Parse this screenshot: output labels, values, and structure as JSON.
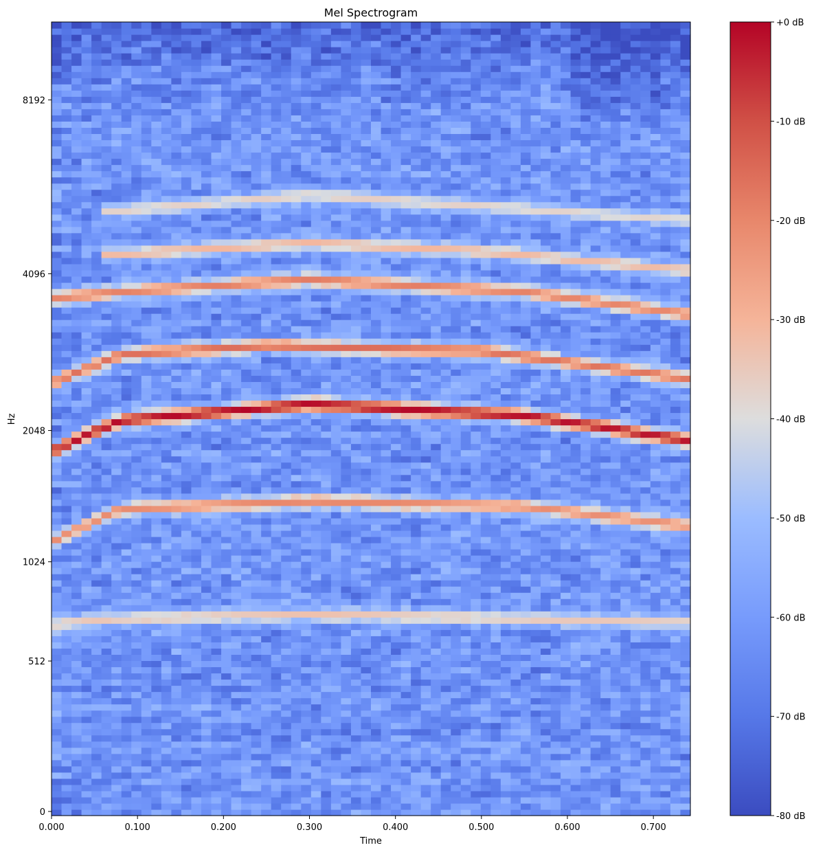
{
  "chart_data": {
    "type": "heatmap",
    "title": "Mel Spectrogram",
    "xlabel": "Time",
    "ylabel": "Hz",
    "xlim": [
      0,
      0.743
    ],
    "x_ticks": [
      "0.000",
      "0.100",
      "0.200",
      "0.300",
      "0.400",
      "0.500",
      "0.600",
      "0.700"
    ],
    "x_tick_values": [
      0,
      0.1,
      0.2,
      0.3,
      0.4,
      0.5,
      0.6,
      0.7
    ],
    "y_scale": "mel",
    "y_ticks": [
      "0",
      "512",
      "1024",
      "2048",
      "4096",
      "8192"
    ],
    "y_tick_values": [
      0,
      512,
      1024,
      2048,
      4096,
      8192
    ],
    "y_max_hz": 11025,
    "colormap": "coolwarm",
    "colorbar": {
      "range_db": [
        -80,
        0
      ],
      "ticks": [
        "+0 dB",
        "-10 dB",
        "-20 dB",
        "-30 dB",
        "-40 dB",
        "-50 dB",
        "-60 dB",
        "-70 dB",
        "-80 dB"
      ],
      "tick_values": [
        0,
        -10,
        -20,
        -30,
        -40,
        -50,
        -60,
        -70,
        -80
      ]
    },
    "harmonic_bands": [
      {
        "points": [
          [
            0.0,
            680
          ],
          [
            0.08,
            710
          ],
          [
            0.3,
            730
          ],
          [
            0.5,
            715
          ],
          [
            0.743,
            690
          ]
        ],
        "peak_db": -33
      },
      {
        "points": [
          [
            0.0,
            1150
          ],
          [
            0.08,
            1380
          ],
          [
            0.3,
            1440
          ],
          [
            0.55,
            1400
          ],
          [
            0.743,
            1260
          ]
        ],
        "peak_db": -20
      },
      {
        "points": [
          [
            0.0,
            1850
          ],
          [
            0.08,
            2150
          ],
          [
            0.3,
            2320
          ],
          [
            0.55,
            2200
          ],
          [
            0.743,
            1950
          ]
        ],
        "peak_db": 0
      },
      {
        "points": [
          [
            0.0,
            2550
          ],
          [
            0.08,
            2900
          ],
          [
            0.25,
            3020
          ],
          [
            0.5,
            2950
          ],
          [
            0.743,
            2600
          ]
        ],
        "peak_db": -15
      },
      {
        "points": [
          [
            0.0,
            3700
          ],
          [
            0.08,
            3800
          ],
          [
            0.3,
            4000
          ],
          [
            0.55,
            3800
          ],
          [
            0.743,
            3450
          ]
        ],
        "peak_db": -18
      },
      {
        "points": [
          [
            0.08,
            4450
          ],
          [
            0.3,
            4650
          ],
          [
            0.5,
            4500
          ],
          [
            0.743,
            4150
          ]
        ],
        "peak_db": -30
      },
      {
        "points": [
          [
            0.08,
            5300
          ],
          [
            0.3,
            5650
          ],
          [
            0.743,
            5100
          ]
        ],
        "peak_db": -36
      }
    ],
    "background_db": -62
  },
  "colors": {
    "low": "#3b4cc0",
    "mid": "#dddddd",
    "high": "#b40426"
  }
}
